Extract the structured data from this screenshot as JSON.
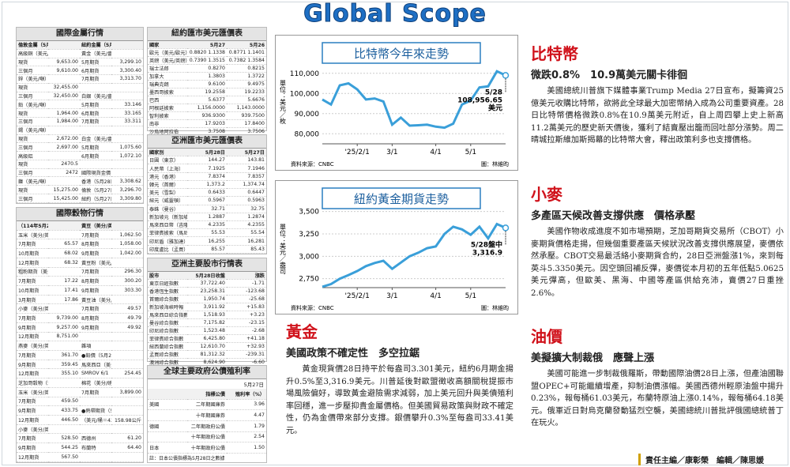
{
  "header": {
    "title": "Global Scope"
  },
  "tables": [
    {
      "title": "國際金屬行情",
      "header": [
        "倫敦金屬（5月27日收盤）",
        null,
        "紐約金屬（5月27日收盤）",
        null
      ],
      "rows": [
        [
          "高級銅（美元/噸）",
          null,
          "黃金（美元/盎司）",
          null
        ],
        [
          "現貨",
          "9,653.00",
          "5月期貨",
          "3,299.10"
        ],
        [
          "三個月",
          "9,610.00",
          "6月期貨",
          "3,300.40"
        ],
        [
          "鋅（美元/噸）",
          null,
          "7月期貨",
          "3,313.70"
        ],
        [
          "現貨",
          "32,455.00",
          null,
          null
        ],
        [
          "三個月",
          "32,450.00",
          "白銀（美元/盎司）",
          null
        ],
        [
          "鉛（美元/噸）",
          null,
          "5月期貨",
          "33.146"
        ],
        [
          "現貨",
          "1,964.00",
          "6月期貨",
          "33.165"
        ],
        [
          "三個月",
          "1,984.00",
          "7月期貨",
          "33.311"
        ],
        [
          "錫（美元/噸）",
          null,
          null,
          null
        ],
        [
          "現貨",
          "2,672.00",
          "白金（美元/盎司）",
          null
        ],
        [
          "三個月",
          "2,697.00",
          "5月期貨",
          "1,075.60"
        ],
        [
          "高級鋁",
          null,
          "6月期貨",
          "1,072.10"
        ],
        [
          "現貨",
          "2470.5",
          null,
          null
        ],
        [
          "三個月",
          "2472",
          "國際現貨金價",
          null
        ],
        [
          "鎳（美元/噸）",
          null,
          "香港（5月28日）",
          "3,308.62"
        ],
        [
          "現貨",
          "15,275.00",
          "倫敦（5月27日）",
          "3,296.70"
        ],
        [
          "三個月",
          "15,425.00",
          "紐約（5月27日）",
          "3,309.80"
        ]
      ]
    },
    {
      "title": "國際穀物行情",
      "header": [
        "（114年5月27收盤）",
        null,
        "黃豆（美分/英斗）",
        null
      ],
      "rows": [
        [
          "玉米（美分/英斗）",
          null,
          "7月期貨",
          "1,062.50"
        ],
        [
          "7月期貨",
          "65.57",
          "8月期貨",
          "1,058.00"
        ],
        [
          "10月期貨",
          "68.02",
          "9月期貨",
          "1,042.00"
        ],
        [
          "12月期貨",
          "68.32",
          "黃豆粉（美元/噸）",
          null
        ],
        [
          "粗粉期貨（美分/磅）",
          null,
          "7月期貨",
          "296.30"
        ],
        [
          "7月期貨",
          "17.22",
          "8月期貨",
          "300.20"
        ],
        [
          "10月期貨",
          "17.41",
          "9月期貨",
          "303.30"
        ],
        [
          "3月期貨",
          "17.86",
          "黃豆油（美分/磅）",
          null
        ],
        [
          "小麥（美分/英斗）",
          null,
          "7月期貨",
          "49.57"
        ],
        [
          "7月期貨",
          "9,739.00",
          "8月期貨",
          "49.79"
        ],
        [
          "9月期貨",
          "9,257.00",
          "9月期貨",
          "49.92"
        ],
        [
          "12月期貨",
          "8,751.00",
          null,
          null
        ],
        [
          "燕麥（美分/英斗）",
          null,
          "雜項",
          null
        ],
        [
          "7月期貨",
          "361.70",
          "●鉛價（5月28日收盤）",
          null
        ],
        [
          "9月期貨",
          "359.45",
          "馬來西亞（美分/公斤）",
          null
        ],
        [
          "12月期貨",
          "355.10",
          "SMROV 6/1",
          "254.45"
        ],
        [
          "芝加哥穀物（5月27日收盤）",
          null,
          "棉花（美分/磅）",
          null
        ],
        [
          "玉米（美分/英斗）",
          null,
          "7月期貨",
          "3,899.00"
        ],
        [
          "7月期貨",
          "459.50",
          null,
          null
        ],
        [
          "9月期貨",
          "433.75",
          "●熱帶期貨（5月28日盤中）",
          null
        ],
        [
          "12月期貨",
          "446.50",
          "（美元/桶＝42美制加侖）",
          "158.98公斤"
        ],
        [
          "小麥（美分/英斗）",
          null,
          null,
          null
        ],
        [
          "7月期貨",
          "528.50",
          "西德州",
          "61.20"
        ],
        [
          "9月期貨",
          "544.25",
          "布蘭特",
          "64.40"
        ],
        [
          "12月期貨",
          "567.50",
          null,
          null
        ]
      ]
    },
    {
      "title": "紐約匯市美元匯價表",
      "header": [
        "國家",
        "5月27",
        "5月26"
      ],
      "rows": [
        [
          "歐元（美元/歐元）",
          "0.8820 1.1338",
          "0.8771 1.1401"
        ],
        [
          "英鎊（美元/英鎊）",
          "0.7390 1.3515",
          "0.7382 1.3584"
        ],
        [
          "瑞士法郎",
          "0.8270",
          "0.8215"
        ],
        [
          "加拿大",
          "1.3803",
          "1.3722"
        ],
        [
          "瑞典克朗",
          "9.6100",
          "9.4975"
        ],
        [
          "墨西哥披索",
          "19.2558",
          "19.2233"
        ],
        [
          "巴西",
          "5.6377",
          "5.6676"
        ],
        [
          "阿根廷披索",
          "1,156.0000",
          "1,143.0000"
        ],
        [
          "智利披索",
          "936.9300",
          "939.7500"
        ],
        [
          "南非",
          "17.9203",
          "17.8400"
        ],
        [
          "沙烏地阿拉伯",
          "3.7508",
          "3.7506"
        ]
      ]
    },
    {
      "title": "亞洲匯市美元匯價表",
      "header": [
        "國家別",
        "5月28日",
        "5月27日"
      ],
      "rows": [
        [
          "日圓（東京）",
          "144.27",
          "143.81"
        ],
        [
          "人民幣（上海）",
          "7.1925",
          "7.1946"
        ],
        [
          "港元（香港）",
          "7.8374",
          "7.8357"
        ],
        [
          "韓元（首爾）",
          "1,373.2",
          "1,374.74"
        ],
        [
          "美元（雪梨）",
          "0.6433",
          "0.6447"
        ],
        [
          "紐元（威靈頓）",
          "0.5967",
          "0.5963"
        ],
        [
          "泰銖（曼谷）",
          "32.71",
          "32.75"
        ],
        [
          "新加坡元（新加坡）",
          "1.2887",
          "1.2874"
        ],
        [
          "馬來西亞幣（吉隆坡）",
          "4.2335",
          "4.2355"
        ],
        [
          "菲律賓披索（馬尼拉）",
          "55.53",
          "55.54"
        ],
        [
          "印尼盾（雅加達）",
          "16,255",
          "16,281"
        ],
        [
          "印度盧比（孟買）",
          "85.57",
          "85.43"
        ]
      ]
    },
    {
      "title": "亞洲主要股市行情表",
      "header": [
        "股市",
        "5月28日收盤",
        "漲跌"
      ],
      "rows": [
        [
          "東京日經指數",
          "37,722.40",
          "-1.71"
        ],
        [
          "香港恆生指數",
          "23,258.31",
          "-123.68"
        ],
        [
          "首爾綜合指數",
          "1,950.74",
          "-25.68"
        ],
        [
          "新加坡海峽時報",
          "3,911.92",
          "+15.83"
        ],
        [
          "馬來西亞綜合指數",
          "1,518.93",
          "+3.23"
        ],
        [
          "曼谷綜合指數",
          "7,175.82",
          "-23.15"
        ],
        [
          "印尼綜合指數",
          "1,523.48",
          "-2.68"
        ],
        [
          "菲律賓綜合指數",
          "6,425.80",
          "+41.18"
        ],
        [
          "紐西蘭綜合指數",
          "12,610.70",
          "+32.93"
        ],
        [
          "孟買綜合指數",
          "81,312.32",
          "-239.31"
        ],
        [
          "澳洲綜合指數",
          "8,624.90",
          "-6.60"
        ],
        [
          "越南綜合指數",
          "1,326.66",
          "-12.07"
        ]
      ]
    },
    {
      "title": "全球主要政府公債殖利率",
      "date": "5月27日",
      "header": [
        null,
        "指標公債",
        "殖利率（%）"
      ],
      "rows": [
        [
          "美國",
          "二年期國庫券",
          "3.96"
        ],
        [
          null,
          "十年期國庫券",
          "4.47"
        ],
        [
          "德國",
          "二年期政府公債",
          "1.79"
        ],
        [
          null,
          "十年期政府公債",
          "2.54"
        ],
        [
          "日本",
          "十年期政府公債",
          "1.50"
        ]
      ],
      "note": "註：日本公債指標為5月28日之數據"
    }
  ],
  "bitcoin_chart": {
    "type": "line",
    "title": "比特幣今年來走勢",
    "y_label": "單位：美元／枚",
    "color": "#3a9fd9",
    "categories": [
      null,
      null,
      null,
      null,
      "'25/2/1",
      null,
      null,
      null,
      "3/1",
      null,
      null,
      null,
      null,
      "4/1",
      null,
      null,
      null,
      "5/1",
      null,
      null,
      null,
      null
    ],
    "values": [
      97000,
      94500,
      104000,
      105000,
      102000,
      97000,
      97500,
      96000,
      84500,
      88000,
      84000,
      84200,
      84500,
      83500,
      83000,
      85000,
      94500,
      96500,
      103000,
      103500,
      111000,
      108956.65
    ],
    "ylim": [
      75000,
      115000
    ],
    "yticks": [
      {
        "value": 80000,
        "label": "80,000"
      },
      {
        "value": 90000,
        "label": "90,000"
      },
      {
        "value": 100000,
        "label": "100,000"
      },
      {
        "value": 110000,
        "label": "110,000"
      }
    ],
    "annotation": [
      "5/28",
      "108,956.65",
      "美元"
    ],
    "source": "資料來源：CNBC",
    "credit": "圖：林維昀"
  },
  "gold_chart": {
    "type": "line",
    "title": "紐約黃金期貨走勢",
    "y_label": "單位：美元／盎司",
    "color": "#3a9fd9",
    "categories": [
      null,
      null,
      null,
      null,
      "'25/2/1",
      null,
      null,
      null,
      "3/1",
      null,
      null,
      null,
      null,
      "4/1",
      null,
      null,
      null,
      "5/1",
      null,
      null,
      null,
      null
    ],
    "values": [
      2660,
      2690,
      2750,
      2790,
      2835,
      2890,
      2925,
      2950,
      2860,
      2930,
      3000,
      3040,
      3090,
      3110,
      3250,
      3330,
      3300,
      3240,
      3330,
      3200,
      3360,
      3316.9
    ],
    "ylim": [
      2650,
      3550
    ],
    "yticks": [
      {
        "value": 2750,
        "label": "2,750"
      },
      {
        "value": 3000,
        "label": "3,000"
      },
      {
        "value": 3250,
        "label": "3,250"
      },
      {
        "value": 3500,
        "label": "3,500"
      }
    ],
    "annotation": [
      "5/28盤中",
      "3,316.9"
    ],
    "source": "資料來源：CNBC",
    "credit": "圖：林維昀"
  },
  "articles": [
    {
      "headline": "比特幣",
      "subhead": "微跌0.8%　10.9萬美元關卡徘徊",
      "body": "美國總統川普旗下媒體事業Trump Media 27日宣布，擬籌資25億美元收購比特幣，欲將此全球最大加密幣納入成為公司重要資產。28日比特幣價格微跌0.8%在10.9萬美元附近，自上周四攀上史上新高11.2萬美元的歷史新天價後，獲利了結賣壓出籠而回吐部分漲勢。周二晴城拉斯維加斯揭幕的比特幣大會，釋出政策利多也支撐價格。"
    },
    {
      "headline": "小麥",
      "subhead": "多產區天候改善支撐供應　價格承壓",
      "body": "美國作物收成進度不如市場預期，芝加哥期貨交易所（CBOT）小麥期貨價格走揚，但幾個重要產區天候狀況改善支撐供應展望，麥價依然承壓。CBOT交易最活絡小麥期貨合約，28日亞洲盤漲1%，來到每英斗5.3350美元。因空頭回補反彈，麥價從本月初的五年低點5.0625美元彈高，但歐美、黑海、中國等產區供給充沛，賣價27日重挫2.6%。"
    },
    {
      "headline": "油價",
      "subhead": "美擬擴大制裁俄　應聲上漲",
      "body": "美國可能進一步制裁俄羅斯，帶動國際油價28日上漲，但產油國聯盟OPEC+可能繼續增產，抑制油價漲幅。美國西德州輕原油盤中揚升0.23%，報每桶61.03美元，布蘭特原油上漲0.14%，報每桶64.18美元。俄軍近日對烏克蘭發動猛烈空襲，美國總統川普批評俄國總統普丁在玩火。"
    },
    {
      "headline": "黃金",
      "subhead": "美國政策不確定性　多空拉鋸",
      "body": "黃金現貨價28日持平於每盎司3.301美元，紐約6月期金揚升0.5%至3,316.9美元。川普延後對歐盟徵收高額關稅提振市場風險偏好，導致黃金避險需求減弱，加上美元回升與美債殖利率回穩，進一步壓抑貴金屬價格。但美國貿易政策與財政不確定性，仍為金價帶來部分支撐。銀價攀升0.3%至每盎司33.41美元。"
    }
  ],
  "footer": "責任主編／康彰榮　編輯／陳思媛"
}
